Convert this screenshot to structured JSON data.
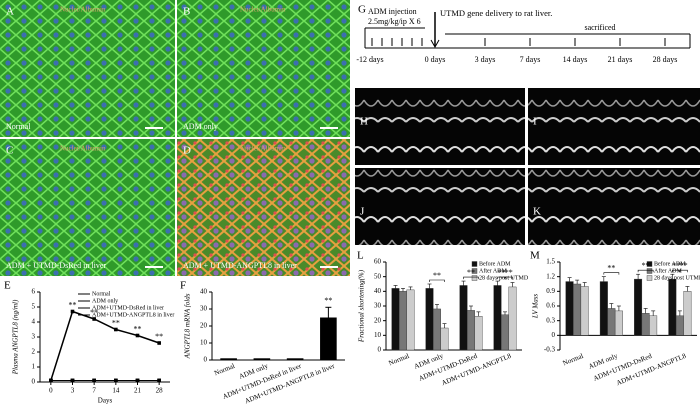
{
  "images": [
    {
      "letter": "A",
      "stain": "Nuclei/Albumin",
      "caption": "Normal"
    },
    {
      "letter": "B",
      "stain": "Nuclei/Albumin",
      "caption": "ADM only"
    },
    {
      "letter": "C",
      "stain": "Nuclei/Albumin",
      "caption": "ADM + UTMD-DsRed in liver"
    },
    {
      "letter": "D",
      "stain": "Nuclei/Albumin",
      "caption": "ADM + UTMD-ANGPTL8 in liver"
    }
  ],
  "timeline": {
    "letter": "G",
    "injection": "ADM injection",
    "dose": "2.5mg/kg/ip X 6",
    "delivery": "UTMD gene delivery to rat liver.",
    "end": "sacrificed",
    "days": [
      "-12 days",
      "0 days",
      "3 days",
      "7 days",
      "14 days",
      "21 days",
      "28 days"
    ]
  },
  "echo": [
    "H",
    "I",
    "J",
    "K"
  ],
  "chart_data": [
    {
      "type": "line",
      "panel": "E",
      "ylabel": "Plasma ANGPTL8 (ng/ml)",
      "xlabel": "Days",
      "categories": [
        "0",
        "3",
        "7",
        "14",
        "21",
        "28"
      ],
      "ylim": [
        0,
        6
      ],
      "yticks": [
        0,
        1,
        2,
        3,
        4,
        5,
        6
      ],
      "series": [
        {
          "name": "Normal",
          "color": "#000000",
          "values": [
            0.1,
            0.1,
            0.1,
            0.1,
            0.1,
            0.1
          ]
        },
        {
          "name": "ADM only",
          "color": "#000000",
          "values": [
            0.1,
            0.1,
            0.1,
            0.1,
            0.1,
            0.1
          ]
        },
        {
          "name": "ADM+UTMD-DsRed in liver",
          "color": "#000000",
          "values": [
            0.1,
            0.1,
            0.1,
            0.1,
            0.1,
            0.1
          ]
        },
        {
          "name": "ADM+UTMD-ANGPTL8 in liver",
          "color": "#000000",
          "values": [
            0.1,
            4.7,
            4.2,
            3.5,
            3.1,
            2.6
          ]
        }
      ],
      "annotations": [
        "**",
        "**",
        "**",
        "**",
        "**"
      ]
    },
    {
      "type": "bar",
      "panel": "F",
      "ylabel": "ANGPTL8 mRNA folds",
      "categories": [
        "Normal",
        "ADM only",
        "ADM+UTMD-DsRed in liver",
        "ADM+UTMD-ANGPTL8 in liver"
      ],
      "values": [
        1,
        1,
        1,
        25
      ],
      "errors": [
        null,
        null,
        null,
        6
      ],
      "color": "#000000",
      "ylim": [
        0,
        40
      ],
      "yticks": [
        0,
        10,
        20,
        30,
        40
      ],
      "annotations": [
        "**"
      ]
    },
    {
      "type": "grouped_bar",
      "panel": "L",
      "ylabel": "Fractional shortening(%)",
      "categories": [
        "Normal",
        "ADM only",
        "ADM+UTMD-DsRed",
        "ADM+UTMD-ANGPTL8"
      ],
      "ylim": [
        0,
        60
      ],
      "yticks": [
        0,
        10,
        20,
        30,
        40,
        50,
        60
      ],
      "series": [
        {
          "name": "Before ADM",
          "color": "#111111",
          "values": [
            42,
            42,
            44,
            44
          ],
          "errors": [
            2,
            3,
            3,
            3
          ]
        },
        {
          "name": "After ADM",
          "color": "#777777",
          "values": [
            40,
            28,
            27,
            24
          ],
          "errors": [
            2,
            3,
            3,
            2
          ]
        },
        {
          "name": "28 days post UTMD",
          "color": "#cccccc",
          "values": [
            41,
            15,
            23,
            43
          ],
          "errors": [
            2,
            3,
            3,
            3
          ]
        }
      ],
      "annotations": [
        "**",
        "**",
        "**",
        "**"
      ]
    },
    {
      "type": "grouped_bar",
      "panel": "M",
      "ylabel": "LV Mass",
      "categories": [
        "Normal",
        "ADM only",
        "ADM+UTMD-DsRed",
        "ADM+UTMD-ANGPTL8"
      ],
      "ylim": [
        -0.3,
        1.5
      ],
      "yticks": [
        -0.3,
        0,
        0.3,
        0.6,
        0.9,
        1.2,
        1.5
      ],
      "series": [
        {
          "name": "Before ADM",
          "color": "#111111",
          "values": [
            1.1,
            1.1,
            1.15,
            1.15
          ],
          "errors": [
            0.08,
            0.1,
            0.1,
            0.1
          ]
        },
        {
          "name": "After ADM",
          "color": "#777777",
          "values": [
            1.05,
            0.55,
            0.45,
            0.4
          ],
          "errors": [
            0.08,
            0.1,
            0.1,
            0.1
          ]
        },
        {
          "name": "28 days post UTMD",
          "color": "#cccccc",
          "values": [
            1.0,
            0.5,
            0.4,
            0.9
          ],
          "errors": [
            0.08,
            0.1,
            0.1,
            0.1
          ]
        }
      ],
      "annotations": [
        "**",
        "**",
        "**",
        "**"
      ]
    }
  ]
}
